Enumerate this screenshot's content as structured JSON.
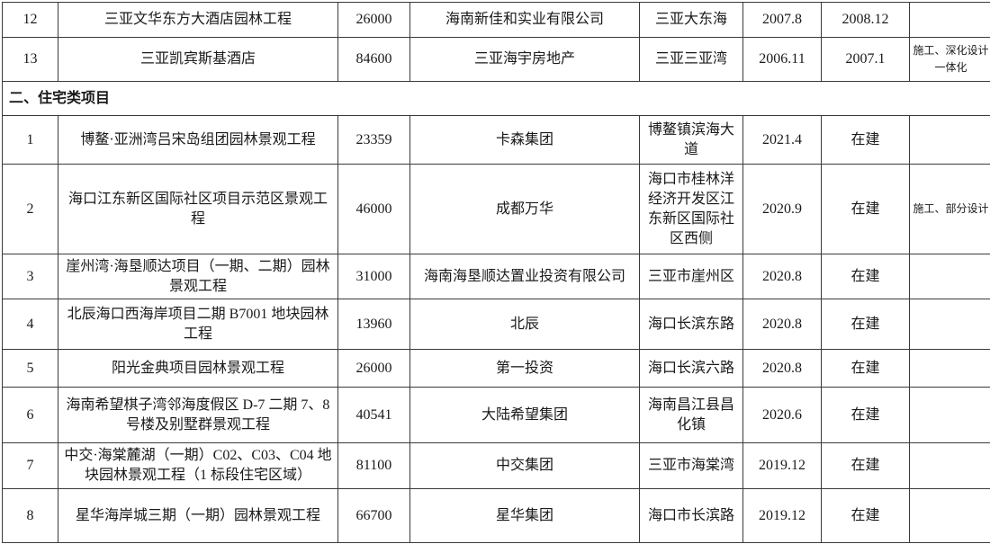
{
  "document": {
    "kind": "project-list-table-continuation",
    "rows": [
      {
        "type": "data",
        "seq": "12",
        "project": "三亚文华东方大酒店园林工程",
        "area": "26000",
        "client": "海南新佳和实业有限公司",
        "location": "三亚大东海",
        "start": "2007.8",
        "finish": "2008.12",
        "note": ""
      },
      {
        "type": "data",
        "seq": "13",
        "project": "三亚凯宾斯基酒店",
        "area": "84600",
        "client": "三亚海宇房地产",
        "location": "三亚三亚湾",
        "start": "2006.11",
        "finish": "2007.1",
        "note": "施工、深化设计一体化"
      },
      {
        "type": "section",
        "label": "二、住宅类项目"
      },
      {
        "type": "data",
        "seq": "1",
        "project": "博鳌·亚洲湾吕宋岛组团园林景观工程",
        "area": "23359",
        "client": "卡森集团",
        "location": "博鳌镇滨海大道",
        "start": "2021.4",
        "finish": "在建",
        "note": ""
      },
      {
        "type": "data",
        "seq": "2",
        "project": "海口江东新区国际社区项目示范区景观工程",
        "area": "46000",
        "client": "成都万华",
        "location": "海口市桂林洋经济开发区江东新区国际社区西侧",
        "start": "2020.9",
        "finish": "在建",
        "note": "施工、部分设计"
      },
      {
        "type": "data",
        "seq": "3",
        "project": "崖州湾·海垦顺达项目（一期、二期）园林景观工程",
        "area": "31000",
        "client": "海南海垦顺达置业投资有限公司",
        "location": "三亚市崖州区",
        "start": "2020.8",
        "finish": "在建",
        "note": ""
      },
      {
        "type": "data",
        "seq": "4",
        "project": "北辰海口西海岸项目二期 B7001 地块园林工程",
        "area": "13960",
        "client": "北辰",
        "location": "海口长滨东路",
        "start": "2020.8",
        "finish": "在建",
        "note": ""
      },
      {
        "type": "data",
        "seq": "5",
        "project": "阳光金典项目园林景观工程",
        "area": "26000",
        "client": "第一投资",
        "location": "海口长滨六路",
        "start": "2020.8",
        "finish": "在建",
        "note": ""
      },
      {
        "type": "data",
        "seq": "6",
        "project": "海南希望棋子湾邻海度假区 D-7 二期 7、8 号楼及别墅群景观工程",
        "area": "40541",
        "client": "大陆希望集团",
        "location": "海南昌江县昌化镇",
        "start": "2020.6",
        "finish": "在建",
        "note": ""
      },
      {
        "type": "data",
        "seq": "7",
        "project": "中交·海棠麓湖（一期）C02、C03、C04 地块园林景观工程（1 标段住宅区域）",
        "area": "81100",
        "client": "中交集团",
        "location": "三亚市海棠湾",
        "start": "2019.12",
        "finish": "在建",
        "note": ""
      },
      {
        "type": "data",
        "seq": "8",
        "project": "星华海岸城三期（一期）园林景观工程",
        "area": "66700",
        "client": "星华集团",
        "location": "海口市长滨路",
        "start": "2019.12",
        "finish": "在建",
        "note": ""
      }
    ]
  }
}
